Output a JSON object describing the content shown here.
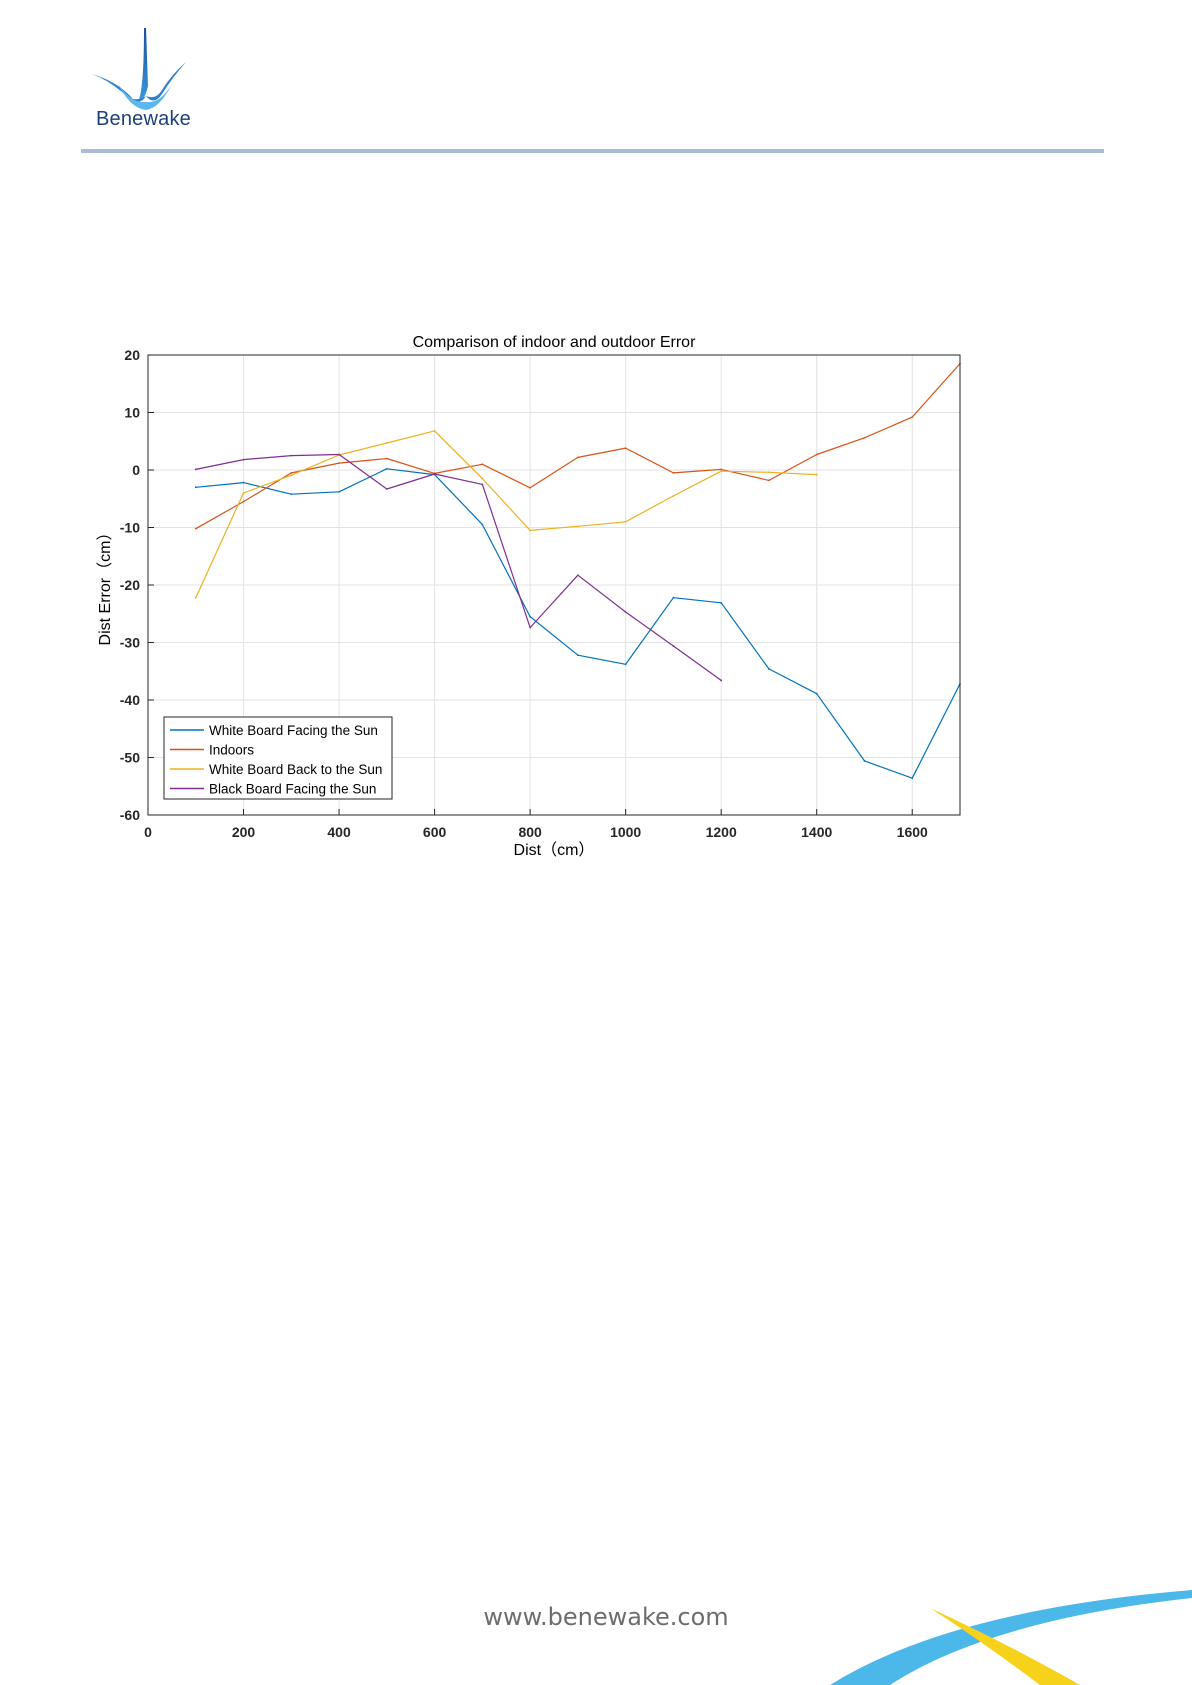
{
  "header": {
    "logo_text": "Benewake"
  },
  "footer": {
    "url": "www.benewake.com"
  },
  "colors": {
    "white_board_facing_sun": "#0072BD",
    "indoors": "#D95319",
    "white_board_back_to_sun": "#EDB120",
    "black_board_facing_sun": "#7E2F8E"
  },
  "chart_data": {
    "type": "line",
    "title": "Comparison of  indoor and outdoor Error",
    "xlabel": "Dist（cm）",
    "ylabel": "Dist Error（cm）",
    "xlim": [
      0,
      1700
    ],
    "ylim": [
      -60,
      20
    ],
    "xticks": [
      0,
      200,
      400,
      600,
      800,
      1000,
      1200,
      1400,
      1600
    ],
    "yticks": [
      20,
      10,
      0,
      -10,
      -20,
      -30,
      -40,
      -50,
      -60
    ],
    "grid": true,
    "legend_position": "bottom-left",
    "series": [
      {
        "name": "White Board Facing the Sun",
        "color": "#0072BD",
        "x": [
          100,
          200,
          300,
          400,
          500,
          600,
          700,
          800,
          900,
          1000,
          1100,
          1200,
          1300,
          1400,
          1500,
          1600,
          1700
        ],
        "y": [
          -3,
          -2.2,
          -4.2,
          -3.8,
          0.2,
          -0.8,
          -9.5,
          -25.5,
          -32.2,
          -33.8,
          -22.2,
          -23.1,
          -34.6,
          -38.9,
          -50.6,
          -53.6,
          -37.2
        ]
      },
      {
        "name": "Indoors",
        "color": "#D95319",
        "x": [
          100,
          200,
          300,
          400,
          500,
          600,
          700,
          800,
          900,
          1000,
          1100,
          1200,
          1300,
          1400,
          1500,
          1600,
          1700
        ],
        "y": [
          -10.2,
          -5.5,
          -0.5,
          1.2,
          2.0,
          -0.6,
          1.0,
          -3.1,
          2.2,
          3.8,
          -0.5,
          0.1,
          -1.8,
          2.7,
          5.6,
          9.2,
          18.5
        ]
      },
      {
        "name": "White Board Back to the Sun",
        "color": "#EDB120",
        "x": [
          100,
          200,
          300,
          400,
          500,
          600,
          700,
          800,
          900,
          1000,
          1100,
          1200,
          1300,
          1400
        ],
        "y": [
          -22.2,
          -4.0,
          -0.9,
          2.6,
          4.7,
          6.8,
          -1.5,
          -10.5,
          -9.8,
          -9.0,
          -4.5,
          -0.2,
          -0.4,
          -0.8
        ]
      },
      {
        "name": "Black Board Facing the Sun",
        "color": "#7E2F8E",
        "x": [
          100,
          200,
          300,
          400,
          500,
          600,
          700,
          800,
          900,
          1000,
          1100,
          1200
        ],
        "y": [
          0.1,
          1.8,
          2.5,
          2.7,
          -3.3,
          -0.7,
          -2.5,
          -27.4,
          -18.3,
          -24.7,
          -30.6,
          -36.6
        ]
      }
    ]
  }
}
